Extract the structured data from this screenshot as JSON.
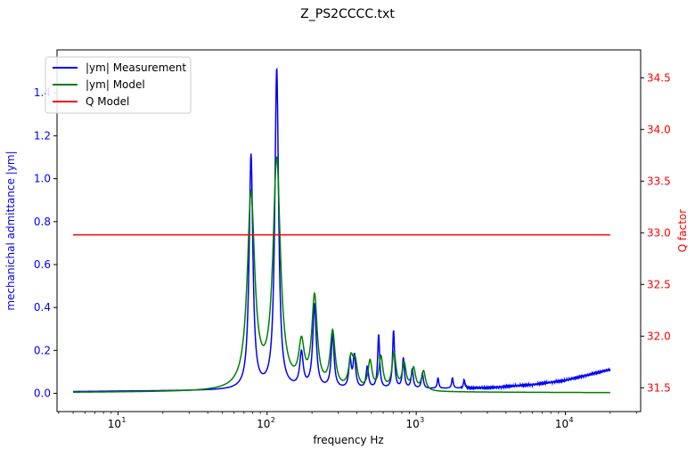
{
  "chart_data": {
    "type": "line",
    "title": "Z_PS2CCCC.txt",
    "xlabel": "frequency Hz",
    "ylabel_left": "mechanichal admittance |ym|",
    "ylabel_right": "Q factor",
    "xscale": "log",
    "xlim": [
      3.9,
      32000
    ],
    "ylim_left": [
      -0.085,
      1.6
    ],
    "ylim_right": [
      31.27,
      34.77
    ],
    "x_ticks": [
      {
        "value": 10,
        "base": "10",
        "exp": "1"
      },
      {
        "value": 100,
        "base": "10",
        "exp": "2"
      },
      {
        "value": 1000,
        "base": "10",
        "exp": "3"
      },
      {
        "value": 10000,
        "base": "10",
        "exp": "4"
      }
    ],
    "y_ticks_left": [
      "0.0",
      "0.2",
      "0.4",
      "0.6",
      "0.8",
      "1.0",
      "1.2",
      "1.4"
    ],
    "y_ticks_right": [
      "31.5",
      "32.0",
      "32.5",
      "33.0",
      "33.5",
      "34.0",
      "34.5"
    ],
    "colors": {
      "measurement": "#0000ff",
      "model": "#008000",
      "q_model": "#ff0000",
      "left_axis": "#0000ff",
      "right_axis": "#ff0000"
    },
    "legend": {
      "position": "upper left",
      "entries": [
        "|ym| Measurement",
        "|ym| Model",
        "Q Model"
      ]
    },
    "frequency_range_hz": [
      5,
      20000
    ],
    "q_model_value": 32.98,
    "measurement": {
      "name": "|ym| Measurement",
      "baseline": [
        [
          5,
          0.008
        ],
        [
          10,
          0.01
        ],
        [
          100,
          0.015
        ],
        [
          1000,
          0.02
        ],
        [
          3000,
          0.025
        ],
        [
          6000,
          0.04
        ],
        [
          10000,
          0.06
        ],
        [
          15000,
          0.09
        ],
        [
          20000,
          0.11
        ]
      ],
      "peaks": [
        {
          "f": 78,
          "a": 1.09,
          "w": 0.015
        },
        {
          "f": 116,
          "a": 1.49,
          "w": 0.015
        },
        {
          "f": 170,
          "a": 0.16,
          "w": 0.014
        },
        {
          "f": 208,
          "a": 0.39,
          "w": 0.014
        },
        {
          "f": 275,
          "a": 0.25,
          "w": 0.012
        },
        {
          "f": 360,
          "a": 0.13,
          "w": 0.01
        },
        {
          "f": 385,
          "a": 0.15,
          "w": 0.01
        },
        {
          "f": 470,
          "a": 0.1,
          "w": 0.01
        },
        {
          "f": 560,
          "a": 0.25,
          "w": 0.008
        },
        {
          "f": 705,
          "a": 0.27,
          "w": 0.008
        },
        {
          "f": 820,
          "a": 0.14,
          "w": 0.008
        },
        {
          "f": 940,
          "a": 0.09,
          "w": 0.008
        },
        {
          "f": 1100,
          "a": 0.07,
          "w": 0.008
        },
        {
          "f": 1400,
          "a": 0.05,
          "w": 0.006
        },
        {
          "f": 1750,
          "a": 0.05,
          "w": 0.006
        },
        {
          "f": 2100,
          "a": 0.04,
          "w": 0.006
        }
      ]
    },
    "model": {
      "name": "|ym| Model",
      "baseline": [
        [
          5,
          0.004
        ],
        [
          20,
          0.006
        ],
        [
          100,
          0.008
        ],
        [
          1000,
          0.005
        ],
        [
          20000,
          0.003
        ]
      ],
      "peaks": [
        {
          "f": 78,
          "a": 0.9,
          "w": 0.03
        },
        {
          "f": 116,
          "a": 1.06,
          "w": 0.03
        },
        {
          "f": 170,
          "a": 0.19,
          "w": 0.022
        },
        {
          "f": 208,
          "a": 0.42,
          "w": 0.022
        },
        {
          "f": 275,
          "a": 0.26,
          "w": 0.02
        },
        {
          "f": 365,
          "a": 0.13,
          "w": 0.018
        },
        {
          "f": 390,
          "a": 0.11,
          "w": 0.018
        },
        {
          "f": 490,
          "a": 0.13,
          "w": 0.016
        },
        {
          "f": 580,
          "a": 0.15,
          "w": 0.016
        },
        {
          "f": 710,
          "a": 0.17,
          "w": 0.016
        },
        {
          "f": 830,
          "a": 0.12,
          "w": 0.016
        },
        {
          "f": 960,
          "a": 0.1,
          "w": 0.016
        },
        {
          "f": 1120,
          "a": 0.09,
          "w": 0.016
        }
      ]
    }
  }
}
